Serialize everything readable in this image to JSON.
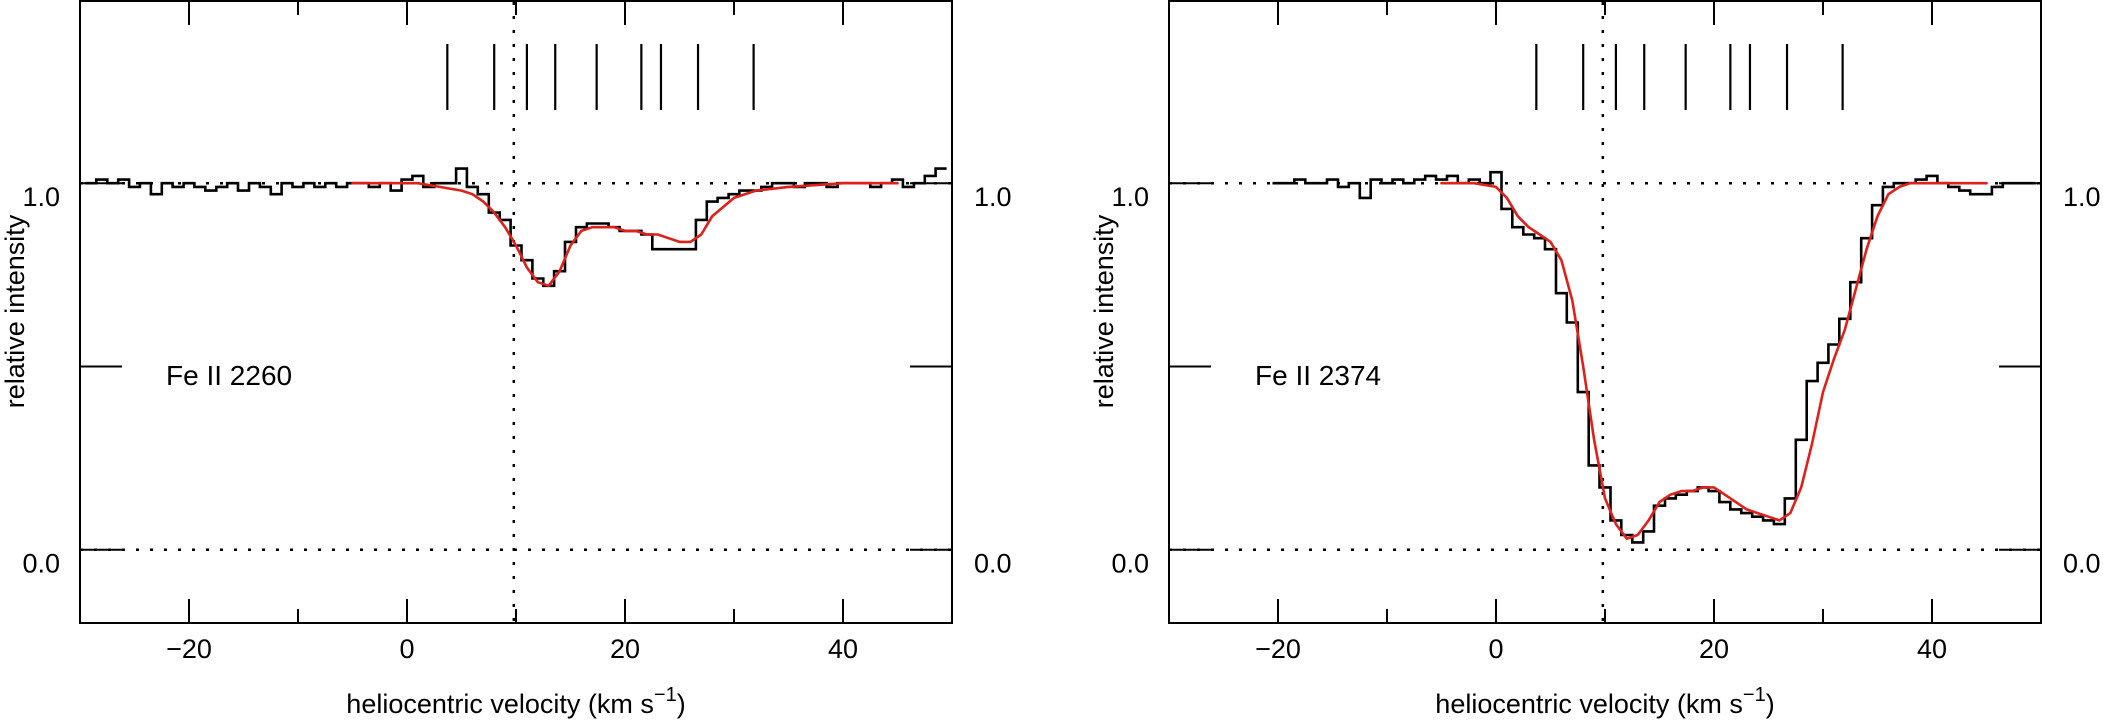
{
  "chart_data": [
    {
      "type": "line",
      "panel_label": "Fe II 2260",
      "xlabel": "heliocentric velocity (km s",
      "xlabel_sup": "−1",
      "xlabel_close": ")",
      "ylabel": "relative intensity",
      "xlim": [
        -30,
        50
      ],
      "ylim": [
        -0.2,
        1.5
      ],
      "xticks": [
        -20,
        0,
        20,
        40
      ],
      "xtick_labels": [
        "−20",
        "0",
        "20",
        "40"
      ],
      "yticks": [
        0.0,
        1.0
      ],
      "ytick_labels": [
        "0.0",
        "1.0"
      ],
      "ytick_minor": [
        0.5
      ],
      "reference_lines": {
        "continuum": 1.0,
        "zero": 0.0,
        "velocity": 9.8
      },
      "component_markers": [
        3.7,
        8.0,
        11.0,
        13.6,
        17.4,
        21.5,
        23.3,
        26.7,
        31.8
      ],
      "series": [
        {
          "style": "histogram",
          "color": "#000000",
          "x": [
            -29,
            -28,
            -27,
            -26,
            -25,
            -24,
            -23,
            -22,
            -21,
            -20,
            -19,
            -18,
            -17,
            -16,
            -15,
            -14,
            -13,
            -12,
            -11,
            -10,
            -9,
            -8,
            -7,
            -6,
            -5,
            -4,
            -3,
            -2,
            -1,
            0,
            1,
            2,
            3,
            4,
            5,
            6,
            7,
            8,
            9,
            10,
            11,
            12,
            13,
            14,
            15,
            16,
            17,
            18,
            19,
            20,
            21,
            22,
            23,
            24,
            25,
            26,
            27,
            28,
            29,
            30,
            31,
            32,
            33,
            34,
            35,
            36,
            37,
            38,
            39,
            40,
            41,
            42,
            43,
            44,
            45,
            46,
            47,
            48,
            49
          ],
          "y": [
            1.0,
            1.01,
            1.0,
            1.01,
            0.99,
            1.0,
            0.97,
            1.0,
            0.99,
            1.0,
            0.99,
            0.98,
            0.99,
            1.0,
            0.98,
            1.0,
            0.99,
            0.97,
            1.0,
            0.99,
            1.0,
            0.99,
            1.0,
            0.99,
            1.0,
            1.0,
            0.99,
            1.0,
            0.98,
            1.01,
            1.02,
            0.99,
            1.0,
            1.0,
            1.04,
            0.99,
            0.97,
            0.92,
            0.9,
            0.83,
            0.79,
            0.74,
            0.72,
            0.76,
            0.84,
            0.88,
            0.89,
            0.89,
            0.88,
            0.87,
            0.87,
            0.86,
            0.82,
            0.82,
            0.82,
            0.82,
            0.9,
            0.95,
            0.96,
            0.97,
            0.98,
            0.98,
            0.99,
            1.0,
            1.0,
            0.99,
            1.0,
            1.0,
            0.99,
            1.0,
            1.0,
            1.0,
            0.99,
            1.0,
            1.01,
            0.99,
            1.0,
            1.02,
            1.04
          ]
        },
        {
          "style": "line",
          "color": "#e0201a",
          "x": [
            -5,
            -2,
            1,
            3,
            5,
            6,
            7,
            8,
            9,
            10,
            11,
            12,
            13,
            14,
            15,
            16,
            17,
            18,
            19,
            20,
            21,
            22,
            23,
            24,
            25,
            26,
            27,
            28,
            30,
            32,
            35,
            40,
            45
          ],
          "y": [
            1.0,
            1.0,
            1.0,
            0.99,
            0.98,
            0.97,
            0.95,
            0.92,
            0.88,
            0.83,
            0.77,
            0.73,
            0.72,
            0.76,
            0.83,
            0.87,
            0.88,
            0.88,
            0.88,
            0.87,
            0.87,
            0.86,
            0.86,
            0.85,
            0.84,
            0.84,
            0.86,
            0.91,
            0.96,
            0.98,
            0.99,
            1.0,
            1.0
          ]
        }
      ]
    },
    {
      "type": "line",
      "panel_label": "Fe II 2374",
      "xlabel": "heliocentric velocity (km s",
      "xlabel_sup": "−1",
      "xlabel_close": ")",
      "ylabel": "relative intensity",
      "xlim": [
        -30,
        50
      ],
      "ylim": [
        -0.2,
        1.5
      ],
      "xticks": [
        -20,
        0,
        20,
        40
      ],
      "xtick_labels": [
        "−20",
        "0",
        "20",
        "40"
      ],
      "yticks": [
        0.0,
        1.0
      ],
      "ytick_labels": [
        "0.0",
        "1.0"
      ],
      "ytick_minor": [
        0.5
      ],
      "reference_lines": {
        "continuum": 1.0,
        "zero": 0.0,
        "velocity": 9.8
      },
      "component_markers": [
        3.7,
        8.0,
        11.0,
        13.6,
        17.4,
        21.5,
        23.3,
        26.7,
        31.8
      ],
      "series": [
        {
          "style": "histogram",
          "color": "#000000",
          "x": [
            -20,
            -19,
            -18,
            -17,
            -16,
            -15,
            -14,
            -13,
            -12,
            -11,
            -10,
            -9,
            -8,
            -7,
            -6,
            -5,
            -4,
            -3,
            -2,
            -1,
            0,
            1,
            2,
            3,
            4,
            5,
            6,
            7,
            8,
            9,
            10,
            11,
            12,
            13,
            14,
            15,
            16,
            17,
            18,
            19,
            20,
            21,
            22,
            23,
            24,
            25,
            26,
            27,
            28,
            29,
            30,
            31,
            32,
            33,
            34,
            35,
            36,
            37,
            38,
            39,
            40,
            41,
            42,
            43,
            44,
            45,
            46,
            47,
            48,
            49
          ],
          "y": [
            1.0,
            1.0,
            1.01,
            1.0,
            1.0,
            1.01,
            0.99,
            1.0,
            0.96,
            1.01,
            1.0,
            1.01,
            1.0,
            1.01,
            1.02,
            1.01,
            1.02,
            1.0,
            1.01,
            1.0,
            1.03,
            0.93,
            0.88,
            0.86,
            0.85,
            0.82,
            0.7,
            0.62,
            0.43,
            0.23,
            0.17,
            0.08,
            0.04,
            0.02,
            0.05,
            0.12,
            0.14,
            0.15,
            0.16,
            0.17,
            0.16,
            0.13,
            0.11,
            0.1,
            0.09,
            0.08,
            0.07,
            0.14,
            0.3,
            0.46,
            0.51,
            0.56,
            0.63,
            0.73,
            0.85,
            0.94,
            0.99,
            1.0,
            1.0,
            1.01,
            1.02,
            1.0,
            0.99,
            0.98,
            0.97,
            0.97,
            0.99,
            1.0,
            1.0,
            1.0
          ]
        },
        {
          "style": "line",
          "color": "#e0201a",
          "x": [
            -5,
            -2,
            0,
            1,
            2,
            3,
            4,
            5,
            6,
            7,
            8,
            9,
            10,
            11,
            12,
            13,
            14,
            15,
            16,
            17,
            18,
            19,
            20,
            21,
            22,
            23,
            24,
            25,
            26,
            27,
            28,
            29,
            30,
            31,
            32,
            33,
            34,
            35,
            36,
            37,
            38,
            40,
            42,
            45
          ],
          "y": [
            1.0,
            1.0,
            0.99,
            0.96,
            0.91,
            0.88,
            0.86,
            0.84,
            0.79,
            0.68,
            0.5,
            0.3,
            0.14,
            0.07,
            0.03,
            0.04,
            0.08,
            0.13,
            0.15,
            0.16,
            0.16,
            0.17,
            0.17,
            0.15,
            0.13,
            0.11,
            0.1,
            0.09,
            0.08,
            0.1,
            0.17,
            0.29,
            0.43,
            0.52,
            0.6,
            0.71,
            0.82,
            0.91,
            0.97,
            0.99,
            1.0,
            1.0,
            1.0,
            1.0
          ]
        }
      ]
    }
  ]
}
